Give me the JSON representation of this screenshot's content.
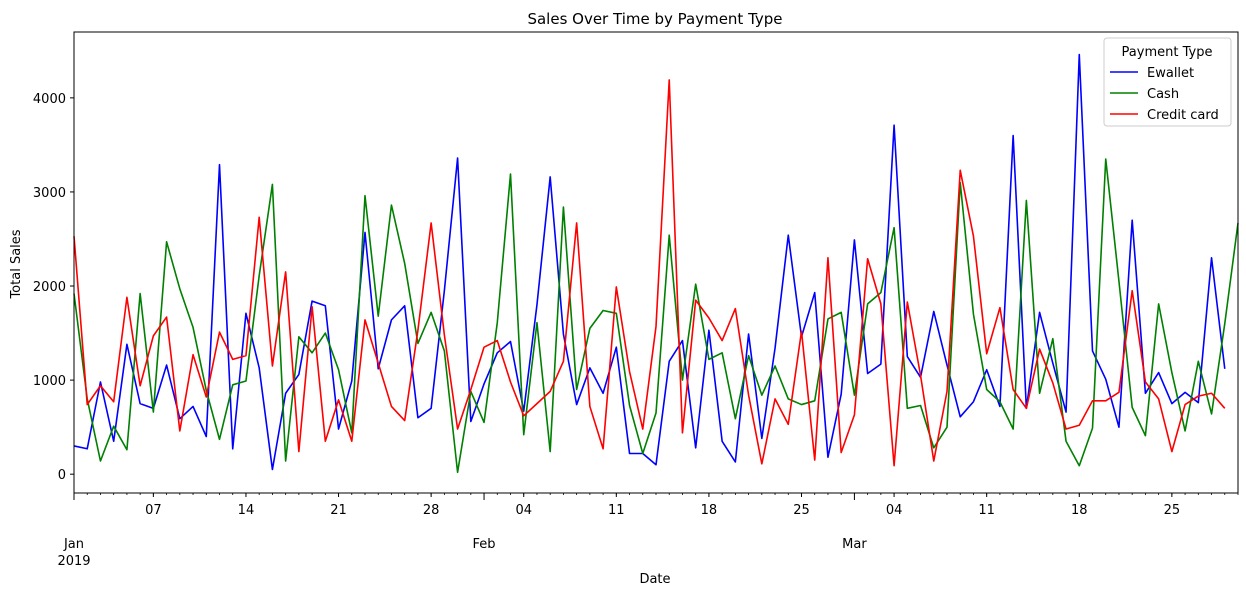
{
  "chart_data": {
    "type": "line",
    "title": "Sales Over Time by Payment Type",
    "xlabel": "Date",
    "ylabel": "Total Sales",
    "x_start": "2019-01-01",
    "x_end": "2019-03-30",
    "ylim": [
      -200,
      4700
    ],
    "y_ticks": [
      0,
      1000,
      2000,
      3000,
      4000
    ],
    "x_major_ticks": [
      {
        "date": "2019-01-01",
        "label": "Jan",
        "sublabel": "2019"
      },
      {
        "date": "2019-02-01",
        "label": "Feb"
      },
      {
        "date": "2019-03-01",
        "label": "Mar"
      }
    ],
    "x_minor_ticks": [
      {
        "date": "2019-01-07",
        "label": "07"
      },
      {
        "date": "2019-01-14",
        "label": "14"
      },
      {
        "date": "2019-01-21",
        "label": "21"
      },
      {
        "date": "2019-01-28",
        "label": "28"
      },
      {
        "date": "2019-02-04",
        "label": "04"
      },
      {
        "date": "2019-02-11",
        "label": "11"
      },
      {
        "date": "2019-02-18",
        "label": "18"
      },
      {
        "date": "2019-02-25",
        "label": "25"
      },
      {
        "date": "2019-03-04",
        "label": "04"
      },
      {
        "date": "2019-03-11",
        "label": "11"
      },
      {
        "date": "2019-03-18",
        "label": "18"
      },
      {
        "date": "2019-03-25",
        "label": "25"
      }
    ],
    "legend": {
      "title": "Payment Type",
      "position": "upper right"
    },
    "grid": false,
    "series": [
      {
        "name": "Ewallet",
        "color": "#0000ff",
        "values": [
          300,
          270,
          980,
          350,
          1380,
          750,
          700,
          1160,
          590,
          720,
          400,
          3290,
          270,
          1710,
          1130,
          50,
          860,
          1060,
          1840,
          1790,
          480,
          990,
          2570,
          1120,
          1640,
          1790,
          600,
          700,
          1950,
          3360,
          560,
          960,
          1290,
          1410,
          670,
          1800,
          3160,
          1490,
          740,
          1130,
          860,
          1350,
          220,
          220,
          100,
          1200,
          1420,
          280,
          1530,
          350,
          130,
          1490,
          380,
          1340,
          2540,
          1460,
          1930,
          180,
          850,
          2490,
          1070,
          1170,
          3710,
          1250,
          1030,
          1730,
          1160,
          610,
          770,
          1110,
          720,
          3600,
          700,
          1720,
          1180,
          660,
          4460,
          1310,
          1010,
          500,
          2700,
          860,
          1080,
          750,
          870,
          760,
          2300,
          1120
        ]
      },
      {
        "name": "Cash",
        "color": "#008000",
        "values": [
          1920,
          800,
          140,
          510,
          260,
          1920,
          660,
          2470,
          1970,
          1560,
          890,
          370,
          950,
          990,
          2110,
          3080,
          140,
          1460,
          1290,
          1500,
          1110,
          440,
          2960,
          1680,
          2860,
          2240,
          1390,
          1720,
          1310,
          20,
          880,
          550,
          1610,
          3190,
          420,
          1610,
          240,
          2840,
          900,
          1550,
          1740,
          1710,
          730,
          220,
          650,
          2540,
          1000,
          2020,
          1220,
          1290,
          590,
          1260,
          840,
          1150,
          800,
          740,
          780,
          1650,
          1720,
          840,
          1810,
          1930,
          2620,
          700,
          730,
          280,
          500,
          3100,
          1700,
          900,
          770,
          480,
          2910,
          860,
          1440,
          350,
          90,
          490,
          3350,
          2050,
          710,
          410,
          1810,
          1080,
          460,
          1200,
          640,
          1600,
          2670
        ]
      },
      {
        "name": "Credit card",
        "color": "#ff0000",
        "values": [
          2530,
          740,
          940,
          770,
          1880,
          940,
          1470,
          1670,
          460,
          1270,
          820,
          1510,
          1220,
          1260,
          2730,
          1150,
          2150,
          240,
          1780,
          350,
          790,
          350,
          1640,
          1180,
          720,
          570,
          1530,
          2670,
          1480,
          480,
          900,
          1350,
          1420,
          980,
          620,
          750,
          880,
          1200,
          2670,
          720,
          270,
          1990,
          1090,
          480,
          1570,
          4190,
          440,
          1850,
          1660,
          1420,
          1760,
          840,
          110,
          800,
          530,
          1520,
          150,
          2300,
          230,
          630,
          2290,
          1810,
          90,
          1830,
          1050,
          140,
          880,
          3230,
          2530,
          1280,
          1770,
          900,
          700,
          1330,
          970,
          480,
          520,
          780,
          780,
          870,
          1950,
          980,
          800,
          240,
          740,
          830,
          860,
          700
        ]
      }
    ]
  }
}
